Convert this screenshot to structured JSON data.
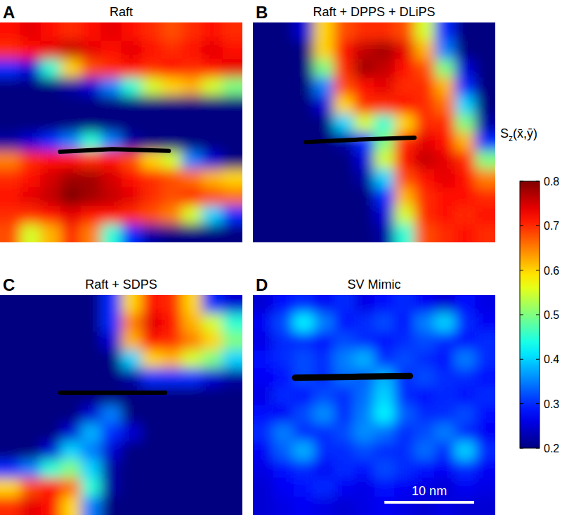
{
  "chart_data": [
    {
      "type": "heatmap",
      "panel_label": "A",
      "title": "Raft",
      "xlim": [
        0,
        27
      ],
      "ylim": [
        0,
        25
      ],
      "tick_labels": false,
      "peptide": {
        "x": [
          6.7,
          12.5,
          18.8
        ],
        "y": [
          14.7,
          14.4,
          14.6
        ]
      },
      "cells": [
        [
          0.72,
          0.74,
          0.72,
          0.7,
          0.72,
          0.74,
          0.72,
          0.7,
          0.68,
          0.7,
          0.72,
          0.7
        ],
        [
          0.7,
          0.72,
          0.74,
          0.76,
          0.74,
          0.72,
          0.74,
          0.72,
          0.7,
          0.72,
          0.74,
          0.72
        ],
        [
          0.3,
          0.25,
          0.45,
          0.6,
          0.68,
          0.7,
          0.72,
          0.7,
          0.72,
          0.7,
          0.72,
          0.74
        ],
        [
          0.2,
          0.2,
          0.2,
          0.22,
          0.25,
          0.35,
          0.45,
          0.55,
          0.6,
          0.62,
          0.55,
          0.5
        ],
        [
          0.2,
          0.2,
          0.2,
          0.2,
          0.2,
          0.2,
          0.2,
          0.2,
          0.2,
          0.2,
          0.2,
          0.2
        ],
        [
          0.2,
          0.2,
          0.2,
          0.2,
          0.2,
          0.2,
          0.2,
          0.2,
          0.2,
          0.2,
          0.2,
          0.2
        ],
        [
          0.22,
          0.25,
          0.3,
          0.35,
          0.45,
          0.35,
          0.22,
          0.2,
          0.2,
          0.2,
          0.2,
          0.2
        ],
        [
          0.65,
          0.7,
          0.72,
          0.72,
          0.7,
          0.72,
          0.68,
          0.6,
          0.55,
          0.35,
          0.25,
          0.2
        ],
        [
          0.7,
          0.72,
          0.75,
          0.78,
          0.78,
          0.75,
          0.72,
          0.7,
          0.68,
          0.66,
          0.62,
          0.6
        ],
        [
          0.72,
          0.74,
          0.76,
          0.8,
          0.78,
          0.76,
          0.74,
          0.7,
          0.68,
          0.7,
          0.68,
          0.66
        ],
        [
          0.7,
          0.7,
          0.72,
          0.74,
          0.72,
          0.72,
          0.7,
          0.68,
          0.65,
          0.55,
          0.4,
          0.3
        ],
        [
          0.68,
          0.55,
          0.62,
          0.7,
          0.65,
          0.45,
          0.3,
          0.22,
          0.2,
          0.2,
          0.2,
          0.2
        ]
      ]
    },
    {
      "type": "heatmap",
      "panel_label": "B",
      "title": "Raft + DPPS + DLiPS",
      "xlim": [
        0,
        27
      ],
      "ylim": [
        0,
        25
      ],
      "tick_labels": false,
      "peptide": {
        "x": [
          5.9,
          12,
          18
        ],
        "y": [
          13.6,
          13.3,
          13.1
        ]
      },
      "cells": [
        [
          0.2,
          0.2,
          0.25,
          0.6,
          0.68,
          0.7,
          0.7,
          0.68,
          0.55,
          0.3,
          0.2,
          0.2
        ],
        [
          0.2,
          0.2,
          0.2,
          0.6,
          0.72,
          0.76,
          0.78,
          0.74,
          0.62,
          0.35,
          0.2,
          0.2
        ],
        [
          0.2,
          0.2,
          0.2,
          0.5,
          0.7,
          0.78,
          0.76,
          0.72,
          0.68,
          0.5,
          0.25,
          0.2
        ],
        [
          0.2,
          0.2,
          0.2,
          0.35,
          0.68,
          0.72,
          0.74,
          0.7,
          0.7,
          0.62,
          0.3,
          0.2
        ],
        [
          0.2,
          0.2,
          0.2,
          0.25,
          0.6,
          0.7,
          0.7,
          0.72,
          0.7,
          0.66,
          0.4,
          0.2
        ],
        [
          0.2,
          0.2,
          0.2,
          0.2,
          0.4,
          0.55,
          0.45,
          0.6,
          0.7,
          0.7,
          0.5,
          0.22
        ],
        [
          0.2,
          0.2,
          0.2,
          0.2,
          0.22,
          0.3,
          0.5,
          0.7,
          0.74,
          0.72,
          0.62,
          0.3
        ],
        [
          0.2,
          0.2,
          0.2,
          0.2,
          0.2,
          0.25,
          0.55,
          0.72,
          0.76,
          0.74,
          0.7,
          0.5
        ],
        [
          0.2,
          0.2,
          0.2,
          0.2,
          0.2,
          0.22,
          0.4,
          0.68,
          0.72,
          0.74,
          0.72,
          0.65
        ],
        [
          0.2,
          0.2,
          0.2,
          0.2,
          0.2,
          0.2,
          0.3,
          0.62,
          0.7,
          0.72,
          0.72,
          0.7
        ],
        [
          0.2,
          0.2,
          0.2,
          0.2,
          0.2,
          0.2,
          0.25,
          0.55,
          0.7,
          0.72,
          0.7,
          0.72
        ],
        [
          0.2,
          0.2,
          0.2,
          0.2,
          0.2,
          0.2,
          0.22,
          0.45,
          0.68,
          0.7,
          0.72,
          0.7
        ]
      ]
    },
    {
      "type": "heatmap",
      "panel_label": "C",
      "title": "Raft + SDPS",
      "xlim": [
        0,
        27
      ],
      "ylim": [
        0,
        25
      ],
      "tick_labels": false,
      "peptide": {
        "x": [
          6.7,
          12.5,
          18.4
        ],
        "y": [
          11.1,
          11.1,
          11.1
        ]
      },
      "cells": [
        [
          0.2,
          0.2,
          0.2,
          0.2,
          0.2,
          0.3,
          0.6,
          0.72,
          0.7,
          0.6,
          0.3,
          0.25
        ],
        [
          0.2,
          0.2,
          0.2,
          0.2,
          0.2,
          0.3,
          0.65,
          0.74,
          0.72,
          0.62,
          0.55,
          0.45
        ],
        [
          0.2,
          0.2,
          0.2,
          0.2,
          0.2,
          0.25,
          0.62,
          0.72,
          0.7,
          0.65,
          0.6,
          0.5
        ],
        [
          0.2,
          0.2,
          0.2,
          0.2,
          0.2,
          0.2,
          0.4,
          0.6,
          0.62,
          0.55,
          0.5,
          0.4
        ],
        [
          0.2,
          0.2,
          0.2,
          0.2,
          0.2,
          0.2,
          0.22,
          0.3,
          0.3,
          0.3,
          0.25,
          0.22
        ],
        [
          0.2,
          0.2,
          0.2,
          0.2,
          0.2,
          0.2,
          0.2,
          0.2,
          0.2,
          0.2,
          0.2,
          0.2
        ],
        [
          0.2,
          0.2,
          0.2,
          0.2,
          0.25,
          0.35,
          0.2,
          0.2,
          0.2,
          0.2,
          0.2,
          0.2
        ],
        [
          0.2,
          0.2,
          0.2,
          0.25,
          0.38,
          0.3,
          0.25,
          0.2,
          0.2,
          0.2,
          0.2,
          0.2
        ],
        [
          0.2,
          0.2,
          0.25,
          0.4,
          0.35,
          0.25,
          0.2,
          0.2,
          0.2,
          0.2,
          0.2,
          0.2
        ],
        [
          0.3,
          0.35,
          0.45,
          0.5,
          0.4,
          0.22,
          0.2,
          0.2,
          0.2,
          0.2,
          0.2,
          0.2
        ],
        [
          0.6,
          0.68,
          0.72,
          0.66,
          0.45,
          0.22,
          0.2,
          0.2,
          0.2,
          0.2,
          0.2,
          0.2
        ],
        [
          0.7,
          0.74,
          0.72,
          0.6,
          0.35,
          0.2,
          0.2,
          0.2,
          0.2,
          0.2,
          0.2,
          0.2
        ]
      ]
    },
    {
      "type": "heatmap",
      "panel_label": "D",
      "title": "SV Mimic",
      "xlim": [
        0,
        27
      ],
      "ylim": [
        0,
        25
      ],
      "tick_labels": false,
      "peptide": {
        "x": [
          4.7,
          11,
          17.5
        ],
        "y": [
          9.4,
          9.3,
          9.2
        ]
      },
      "cells": [
        [
          0.25,
          0.28,
          0.3,
          0.27,
          0.3,
          0.26,
          0.28,
          0.3,
          0.27,
          0.25,
          0.28,
          0.26
        ],
        [
          0.27,
          0.32,
          0.42,
          0.35,
          0.28,
          0.3,
          0.32,
          0.28,
          0.35,
          0.4,
          0.3,
          0.27
        ],
        [
          0.26,
          0.3,
          0.3,
          0.28,
          0.32,
          0.3,
          0.28,
          0.3,
          0.32,
          0.3,
          0.28,
          0.3
        ],
        [
          0.28,
          0.3,
          0.32,
          0.3,
          0.35,
          0.38,
          0.3,
          0.32,
          0.3,
          0.28,
          0.35,
          0.3
        ],
        [
          0.27,
          0.28,
          0.32,
          0.3,
          0.34,
          0.33,
          0.38,
          0.3,
          0.32,
          0.3,
          0.3,
          0.28
        ],
        [
          0.26,
          0.3,
          0.28,
          0.32,
          0.3,
          0.34,
          0.4,
          0.3,
          0.28,
          0.3,
          0.28,
          0.3
        ],
        [
          0.28,
          0.27,
          0.32,
          0.36,
          0.3,
          0.35,
          0.42,
          0.33,
          0.3,
          0.3,
          0.32,
          0.28
        ],
        [
          0.3,
          0.35,
          0.3,
          0.3,
          0.32,
          0.36,
          0.34,
          0.3,
          0.32,
          0.35,
          0.3,
          0.27
        ],
        [
          0.27,
          0.33,
          0.38,
          0.3,
          0.3,
          0.32,
          0.3,
          0.3,
          0.34,
          0.3,
          0.4,
          0.3
        ],
        [
          0.26,
          0.28,
          0.3,
          0.27,
          0.3,
          0.28,
          0.32,
          0.3,
          0.28,
          0.27,
          0.3,
          0.27
        ],
        [
          0.25,
          0.27,
          0.28,
          0.3,
          0.27,
          0.26,
          0.28,
          0.27,
          0.26,
          0.25,
          0.27,
          0.26
        ],
        [
          0.25,
          0.26,
          0.27,
          0.26,
          0.25,
          0.26,
          0.27,
          0.26,
          0.25,
          0.26,
          0.25,
          0.25
        ]
      ]
    }
  ],
  "colorbar": {
    "range": [
      0.2,
      0.8
    ],
    "ticks": [
      0.2,
      0.3,
      0.4,
      0.5,
      0.6,
      0.7,
      0.8
    ],
    "color": "jet",
    "label": {
      "main": "S",
      "sub": "z",
      "args": "(x̄,ȳ)"
    }
  },
  "scale_bar": {
    "length": 10,
    "label": "10 nm"
  }
}
